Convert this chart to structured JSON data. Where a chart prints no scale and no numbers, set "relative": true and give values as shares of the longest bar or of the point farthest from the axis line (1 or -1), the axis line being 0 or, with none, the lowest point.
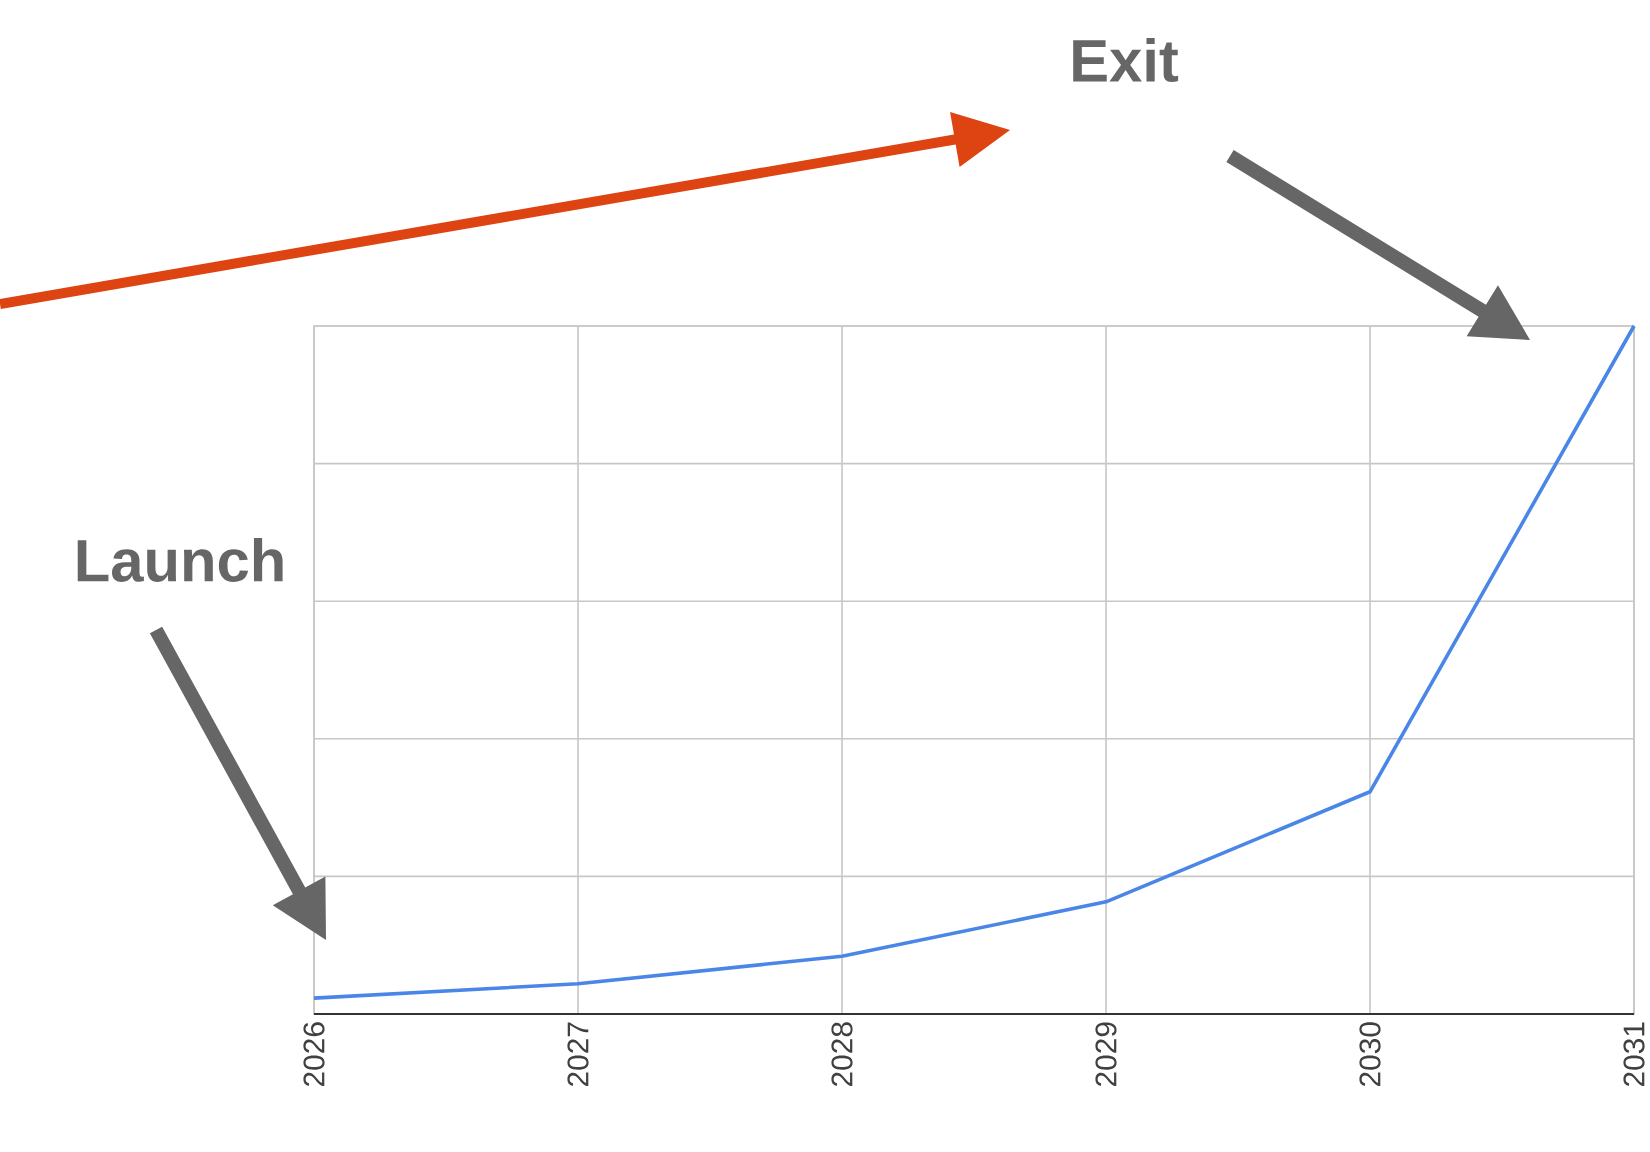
{
  "chart_data": {
    "type": "line",
    "categories": [
      "2026",
      "2027",
      "2028",
      "2029",
      "2030",
      "2031"
    ],
    "values": [
      0.023,
      0.044,
      0.084,
      0.163,
      0.323,
      1
    ],
    "color": "#4a86e8",
    "relative": true,
    "grid": true,
    "tick_labels": "x",
    "annotations": [
      "Launch",
      "Exit"
    ]
  }
}
